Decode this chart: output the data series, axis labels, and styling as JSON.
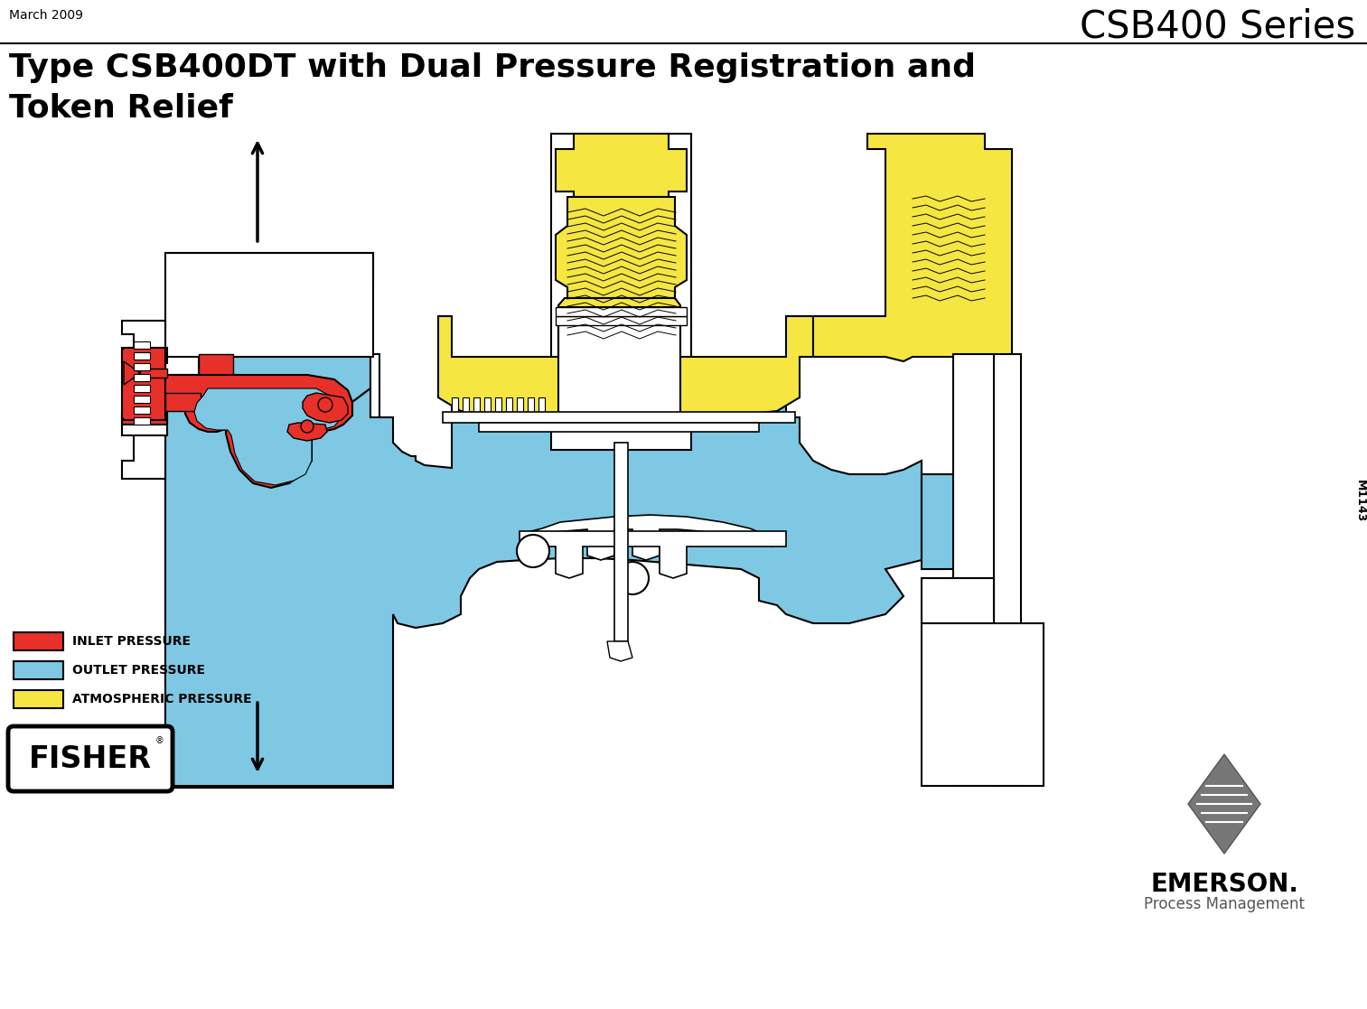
{
  "title_top_right": "CSB400 Series",
  "title_top_left": "March 2009",
  "main_title_line1": "Type CSB400DT with Dual Pressure Registration and",
  "main_title_line2": "Token Relief",
  "legend_items": [
    {
      "color": "#E8302A",
      "label": "INLET PRESSURE"
    },
    {
      "color": "#7EC8E3",
      "label": "OUTLET PRESSURE"
    },
    {
      "color": "#F5E642",
      "label": "ATMOSPHERIC PRESSURE"
    }
  ],
  "m1143_text": "M1143",
  "emerson_text": "EMERSON.",
  "process_mgmt_text": "Process Management",
  "fisher_text": "FISHER",
  "bg_color": "#FFFFFF",
  "red_color": "#E8302A",
  "blue_color": "#7EC8E3",
  "yellow_color": "#F5E642",
  "outline_color": "#000000"
}
